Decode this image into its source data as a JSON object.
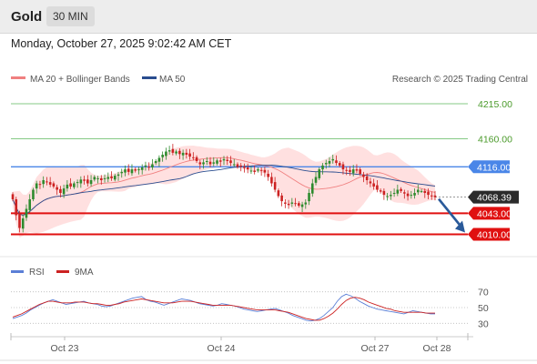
{
  "header": {
    "instrument": "Gold",
    "timeframe": "30 MIN"
  },
  "datetime": "Monday, October 27, 2025 9:02:42 AM CET",
  "legend": {
    "ma20_bb": "MA 20 + Bollinger Bands",
    "ma50": "MA 50",
    "rsi": "RSI",
    "rsi_ma": "9MA"
  },
  "credit": "Research © 2025 Trading Central",
  "colors": {
    "ma20": "#f08080",
    "bands": "#ffd5d5",
    "ma50": "#2a4d8f",
    "up": "#2e8b2e",
    "down": "#cc2222",
    "support": "#e01010",
    "pivot": "#4a86e8",
    "resistance": "#5cb85c",
    "forecast_arrow": "#2a5a9a",
    "rsi": "#5b7fd6",
    "rsi_ma": "#cc2222"
  },
  "chart_data": [
    {
      "type": "candlestick",
      "title": "Gold",
      "timeframe": "30 MIN",
      "ylim": [
        3985,
        4235
      ],
      "x_ticks": [
        "Oct 23",
        "Oct 24",
        "Oct 27",
        "Oct 28"
      ],
      "levels": [
        {
          "value": 4215.0,
          "label": "4215.00",
          "kind": "resistance"
        },
        {
          "value": 4160.0,
          "label": "4160.00",
          "kind": "resistance"
        },
        {
          "value": 4116.0,
          "label": "4116.00",
          "kind": "pivot"
        },
        {
          "value": 4043.0,
          "label": "4043.00",
          "kind": "support"
        },
        {
          "value": 4010.0,
          "label": "4010.00",
          "kind": "support"
        }
      ],
      "last_price": {
        "value": 4068.39,
        "label": "4068.39"
      },
      "forecast": {
        "from": 4068.39,
        "to": 4010.0
      },
      "close_series": [
        4065,
        4040,
        4020,
        4035,
        4050,
        4065,
        4080,
        4090,
        4088,
        4095,
        4092,
        4088,
        4085,
        4080,
        4075,
        4082,
        4088,
        4085,
        4090,
        4092,
        4096,
        4094,
        4090,
        4095,
        4100,
        4098,
        4095,
        4098,
        4100,
        4098,
        4102,
        4104,
        4108,
        4112,
        4108,
        4112,
        4110,
        4112,
        4115,
        4118,
        4115,
        4120,
        4125,
        4130,
        4135,
        4140,
        4142,
        4138,
        4140,
        4136,
        4138,
        4135,
        4132,
        4130,
        4125,
        4120,
        4123,
        4125,
        4120,
        4123,
        4126,
        4124,
        4128,
        4125,
        4122,
        4120,
        4116,
        4117,
        4114,
        4112,
        4110,
        4108,
        4112,
        4110,
        4107,
        4100,
        4090,
        4080,
        4070,
        4062,
        4058,
        4056,
        4060,
        4058,
        4055,
        4057,
        4060,
        4075,
        4090,
        4100,
        4112,
        4118,
        4122,
        4125,
        4128,
        4122,
        4118,
        4112,
        4110,
        4108,
        4112,
        4110,
        4105,
        4100,
        4095,
        4090,
        4085,
        4080,
        4077,
        4072,
        4070,
        4072,
        4075,
        4080,
        4078,
        4074,
        4070,
        4072,
        4075,
        4080,
        4078,
        4075,
        4072,
        4070,
        4068.39
      ]
    },
    {
      "type": "line",
      "title": "RSI",
      "ylim": [
        20,
        80
      ],
      "y_ticks": [
        70,
        50,
        30
      ],
      "series": [
        {
          "name": "RSI",
          "values": [
            36,
            38,
            40,
            43,
            47,
            50,
            53,
            56,
            58,
            60,
            58,
            56,
            54,
            55,
            56,
            57,
            58,
            56,
            55,
            54,
            52,
            51,
            52,
            54,
            56,
            58,
            60,
            62,
            63,
            64,
            60,
            58,
            57,
            55,
            53,
            55,
            57,
            59,
            61,
            60,
            59,
            57,
            55,
            54,
            53,
            52,
            53,
            55,
            54,
            53,
            52,
            50,
            48,
            47,
            46,
            45,
            46,
            47,
            48,
            49,
            47,
            45,
            43,
            40,
            38,
            36,
            34,
            33,
            34,
            36,
            40,
            45,
            50,
            58,
            64,
            67,
            65,
            62,
            58,
            55,
            52,
            50,
            48,
            47,
            46,
            45,
            44,
            43,
            42,
            44,
            46,
            45,
            44,
            43,
            42,
            42
          ]
        },
        {
          "name": "9MA",
          "values": [
            38,
            40,
            42,
            45,
            48,
            51,
            54,
            56,
            58,
            58,
            57,
            56,
            56,
            56,
            57,
            57,
            57,
            56,
            55,
            55,
            54,
            53,
            53,
            54,
            55,
            57,
            58,
            59,
            60,
            61,
            60,
            59,
            58,
            57,
            56,
            56,
            56,
            57,
            58,
            58,
            58,
            57,
            56,
            55,
            54,
            53,
            53,
            53,
            53,
            53,
            52,
            51,
            50,
            49,
            48,
            47,
            47,
            47,
            47,
            47,
            46,
            45,
            44,
            42,
            40,
            38,
            36,
            35,
            34,
            34,
            36,
            39,
            43,
            48,
            54,
            59,
            62,
            63,
            62,
            60,
            57,
            55,
            53,
            51,
            49,
            48,
            46,
            45,
            44,
            44,
            44,
            44,
            44,
            43,
            43,
            43
          ]
        }
      ]
    }
  ]
}
